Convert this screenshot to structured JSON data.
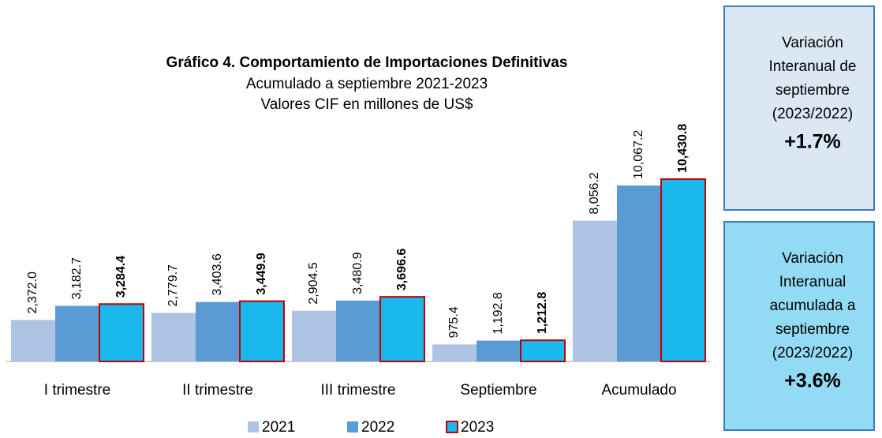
{
  "chart_data": {
    "type": "bar",
    "title": "Gráfico 4. Comportamiento de Importaciones Definitivas",
    "subtitle": [
      "Acumulado a septiembre 2021-2023",
      "Valores CIF en millones de US$"
    ],
    "categories": [
      "I trimestre",
      "II trimestre",
      "III trimestre",
      "Septiembre",
      "Acumulado"
    ],
    "series": [
      {
        "name": "2021",
        "color": "#adc4e4",
        "values": [
          2372.0,
          2779.7,
          2904.5,
          975.4,
          8056.2
        ],
        "value_labels": [
          "2,372.0",
          "2,779.7",
          "2,904.5",
          "975.4",
          "8,056.2"
        ]
      },
      {
        "name": "2022",
        "color": "#5b9bd5",
        "values": [
          3182.7,
          3403.6,
          3480.9,
          1192.8,
          10067.2
        ],
        "value_labels": [
          "3,182.7",
          "3,403.6",
          "3,480.9",
          "1,192.8",
          "10,067.2"
        ]
      },
      {
        "name": "2023",
        "color": "#1ab8ec",
        "edge_color": "#c00000",
        "values": [
          3284.4,
          3449.9,
          3696.6,
          1212.8,
          10430.8
        ],
        "value_labels": [
          "3,284.4",
          "3,449.9",
          "3,696.6",
          "1,212.8",
          "10,430.8"
        ]
      }
    ]
  },
  "side_boxes": [
    {
      "lines": [
        "Variación",
        "Interanual de",
        "septiembre",
        "(2023/2022)"
      ],
      "value": "+1.7%"
    },
    {
      "lines": [
        "Variación",
        "Interanual",
        "acumulada a",
        "septiembre",
        "(2023/2022)"
      ],
      "value": "+3.6%"
    }
  ]
}
